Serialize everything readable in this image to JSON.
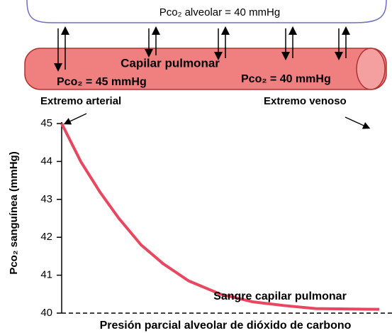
{
  "header": {
    "alveolar": "Pco₂ alveolar = 40 mmHg"
  },
  "capillary": {
    "title": "Capilar pulmonar",
    "arterial_pressure": "Pco₂ = 45 mmHg",
    "venous_pressure": "Pco₂ = 40 mmHg",
    "arterial_end": "Extremo arterial",
    "venous_end": "Extremo venoso"
  },
  "chart_data": {
    "type": "line",
    "y_label": "Pco₂ sanguínea (mmHg)",
    "x": [
      0,
      6,
      12,
      18,
      25,
      32,
      40,
      50,
      60,
      70,
      80,
      100
    ],
    "xlim": [
      0,
      100
    ],
    "series": [
      {
        "name": "Sangre capilar pulmonar",
        "color": "#e8475f",
        "values": [
          45,
          44.0,
          43.2,
          42.5,
          41.8,
          41.3,
          40.85,
          40.5,
          40.3,
          40.2,
          40.12,
          40.1
        ]
      }
    ],
    "reference": {
      "label": "Presión parcial alveolar de dióxido de carbono",
      "value": 40
    },
    "ylim": [
      40,
      45
    ],
    "yticks": [
      40,
      41,
      42,
      43,
      44,
      45
    ]
  }
}
